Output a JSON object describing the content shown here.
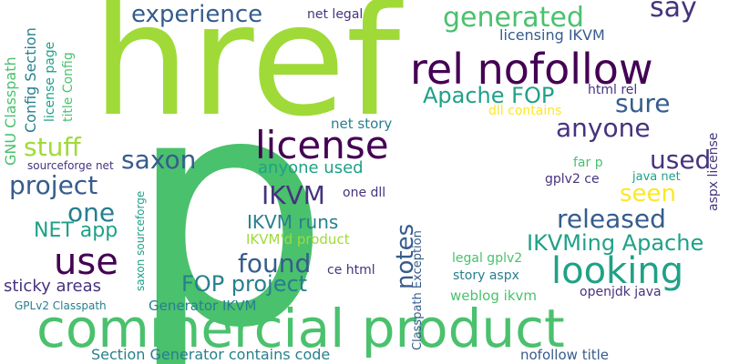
{
  "palette": {
    "purple": "#440154",
    "indigo": "#46337e",
    "blue": "#365c8d",
    "teal": "#277f8e",
    "sea": "#1fa187",
    "green": "#4ac16d",
    "lime": "#a0da39",
    "yellow": "#fde725"
  },
  "words": [
    {
      "text": "p",
      "color": "green"
    },
    {
      "text": "href",
      "color": "lime"
    },
    {
      "text": "commercial product",
      "color": "green"
    },
    {
      "text": "rel nofollow",
      "color": "purple"
    },
    {
      "text": "license",
      "color": "purple"
    },
    {
      "text": "looking",
      "color": "sea"
    },
    {
      "text": "use",
      "color": "purple"
    },
    {
      "text": "experience",
      "color": "blue"
    },
    {
      "text": "generated",
      "color": "green"
    },
    {
      "text": "say",
      "color": "indigo"
    },
    {
      "text": "sure",
      "color": "blue"
    },
    {
      "text": "anyone",
      "color": "indigo"
    },
    {
      "text": "Apache FOP",
      "color": "sea"
    },
    {
      "text": "saxon",
      "color": "blue"
    },
    {
      "text": "stuff",
      "color": "lime"
    },
    {
      "text": "project",
      "color": "blue"
    },
    {
      "text": "one",
      "color": "teal"
    },
    {
      "text": "IKVM",
      "color": "indigo"
    },
    {
      "text": "used",
      "color": "indigo"
    },
    {
      "text": "seen",
      "color": "yellow"
    },
    {
      "text": "released",
      "color": "blue"
    },
    {
      "text": "notes",
      "color": "blue"
    },
    {
      "text": "found",
      "color": "blue"
    },
    {
      "text": "IKVMing Apache",
      "color": "sea"
    },
    {
      "text": "FOP project",
      "color": "teal"
    },
    {
      "text": "NET app",
      "color": "sea"
    },
    {
      "text": "IKVM runs",
      "color": "teal"
    },
    {
      "text": "anyone used",
      "color": "sea"
    },
    {
      "text": "sticky areas",
      "color": "indigo"
    },
    {
      "text": "Section Generator contains code",
      "color": "teal"
    },
    {
      "text": "licensing IKVM",
      "color": "blue"
    },
    {
      "text": "net legal",
      "color": "indigo"
    },
    {
      "text": "GNU Classpath",
      "color": "green"
    },
    {
      "text": "Config Section",
      "color": "teal"
    },
    {
      "text": "license page",
      "color": "sea"
    },
    {
      "text": "title Config",
      "color": "green"
    },
    {
      "text": "html rel",
      "color": "indigo"
    },
    {
      "text": "dll contains",
      "color": "yellow"
    },
    {
      "text": "net story",
      "color": "teal"
    },
    {
      "text": "sourceforge net",
      "color": "indigo"
    },
    {
      "text": "one dll",
      "color": "indigo"
    },
    {
      "text": "gplv2 ce",
      "color": "indigo"
    },
    {
      "text": "far p",
      "color": "green"
    },
    {
      "text": "java net",
      "color": "sea"
    },
    {
      "text": "aspx license",
      "color": "indigo"
    },
    {
      "text": "IKVM'd product",
      "color": "lime"
    },
    {
      "text": "legal gplv2",
      "color": "green"
    },
    {
      "text": "story aspx",
      "color": "teal"
    },
    {
      "text": "Generator IKVM",
      "color": "teal"
    },
    {
      "text": "ce html",
      "color": "indigo"
    },
    {
      "text": "weblog ikvm",
      "color": "green"
    },
    {
      "text": "openjdk java",
      "color": "indigo"
    },
    {
      "text": "saxon sourceforge",
      "color": "sea"
    },
    {
      "text": "Classpath Exception",
      "color": "blue"
    },
    {
      "text": "GPLv2 Classpath",
      "color": "teal"
    },
    {
      "text": "nofollow title",
      "color": "blue"
    }
  ]
}
